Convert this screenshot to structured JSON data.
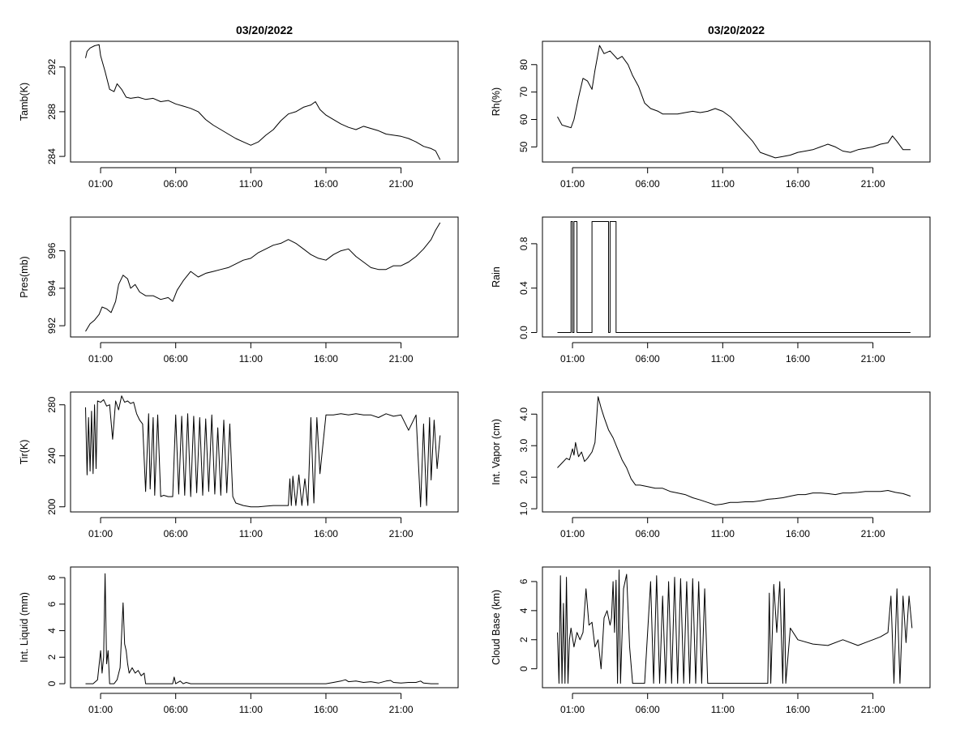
{
  "chart_data": [
    {
      "type": "line",
      "title": "03/20/2022",
      "ylabel": "Tamb(K)",
      "x_ticks": [
        "01:00",
        "06:00",
        "11:00",
        "16:00",
        "21:00"
      ],
      "x_tick_hours": [
        1,
        6,
        11,
        16,
        21
      ],
      "xlim": [
        -1.0,
        24.8
      ],
      "ylim": [
        283.5,
        294.3
      ],
      "y_ticks": [
        284,
        288,
        292
      ],
      "y_tick_labels": [
        "284",
        "288",
        "292"
      ],
      "x": [
        0,
        0.1,
        0.3,
        0.6,
        0.9,
        1.0,
        1.3,
        1.6,
        1.9,
        2.1,
        2.4,
        2.7,
        3.0,
        3.5,
        4.0,
        4.5,
        5.0,
        5.5,
        6.0,
        6.5,
        7.0,
        7.5,
        8.0,
        8.5,
        9.0,
        9.5,
        10.0,
        10.5,
        11.0,
        11.5,
        12.0,
        12.5,
        13.0,
        13.5,
        14.0,
        14.5,
        15.0,
        15.3,
        15.6,
        16.0,
        16.5,
        17.0,
        17.5,
        18.0,
        18.5,
        19.0,
        19.5,
        20.0,
        20.5,
        21.0,
        21.5,
        22.0,
        22.5,
        23.0,
        23.3,
        23.6
      ],
      "y": [
        292.8,
        293.4,
        293.7,
        293.9,
        294.0,
        293.0,
        291.6,
        290.0,
        289.8,
        290.5,
        290.0,
        289.3,
        289.2,
        289.3,
        289.1,
        289.2,
        288.9,
        289.0,
        288.7,
        288.5,
        288.3,
        288.0,
        287.3,
        286.8,
        286.4,
        286.0,
        285.6,
        285.3,
        285.0,
        285.3,
        285.9,
        286.4,
        287.2,
        287.8,
        288.0,
        288.4,
        288.6,
        288.9,
        288.2,
        287.7,
        287.3,
        286.9,
        286.6,
        286.4,
        286.7,
        286.5,
        286.3,
        286.0,
        285.9,
        285.8,
        285.6,
        285.3,
        284.9,
        284.7,
        284.5,
        283.7
      ]
    },
    {
      "type": "line",
      "title": "03/20/2022",
      "ylabel": "Rh(%)",
      "x_ticks": [
        "01:00",
        "06:00",
        "11:00",
        "16:00",
        "21:00"
      ],
      "x_tick_hours": [
        1,
        6,
        11,
        16,
        21
      ],
      "xlim": [
        -1.0,
        24.8
      ],
      "ylim": [
        44.5,
        88.5
      ],
      "y_ticks": [
        50,
        60,
        70,
        80
      ],
      "y_tick_labels": [
        "50",
        "60",
        "70",
        "80"
      ],
      "x": [
        0,
        0.3,
        0.6,
        0.9,
        1.1,
        1.4,
        1.7,
        2.0,
        2.3,
        2.5,
        2.8,
        3.1,
        3.5,
        4.0,
        4.3,
        4.7,
        5.0,
        5.4,
        5.8,
        6.2,
        6.7,
        7.0,
        7.5,
        8.0,
        8.5,
        9.0,
        9.5,
        10.0,
        10.5,
        11.0,
        11.5,
        12.0,
        12.5,
        13.0,
        13.5,
        14.0,
        14.5,
        15.0,
        15.5,
        16.0,
        16.5,
        17.0,
        17.5,
        18.0,
        18.5,
        19.0,
        19.5,
        20.0,
        20.5,
        21.0,
        21.5,
        22.0,
        22.3,
        22.6,
        23.0,
        23.5
      ],
      "y": [
        61,
        58,
        57.5,
        57,
        60,
        68,
        75,
        74,
        71,
        78,
        87,
        84,
        85,
        82,
        83,
        80,
        76,
        72,
        66,
        64,
        63,
        62,
        62,
        62,
        62.5,
        63,
        62.5,
        63,
        64,
        63,
        61,
        58,
        55,
        52,
        48,
        47,
        46,
        46.5,
        47,
        48,
        48.5,
        49,
        50,
        51,
        50,
        48.5,
        48,
        49,
        49.5,
        50,
        51,
        51.5,
        54,
        52,
        49,
        49
      ]
    },
    {
      "type": "line",
      "ylabel": "Pres(mb)",
      "x_ticks": [
        "01:00",
        "06:00",
        "11:00",
        "16:00",
        "21:00"
      ],
      "x_tick_hours": [
        1,
        6,
        11,
        16,
        21
      ],
      "xlim": [
        -1.0,
        24.8
      ],
      "ylim": [
        991.4,
        997.8
      ],
      "y_ticks": [
        992,
        994,
        996
      ],
      "y_tick_labels": [
        "992",
        "994",
        "996"
      ],
      "x": [
        0,
        0.3,
        0.6,
        0.9,
        1.1,
        1.4,
        1.7,
        2.0,
        2.2,
        2.5,
        2.8,
        3.0,
        3.3,
        3.6,
        4.0,
        4.5,
        5.0,
        5.5,
        5.8,
        6.1,
        6.5,
        7.0,
        7.5,
        8.0,
        8.5,
        9.0,
        9.5,
        10.0,
        10.5,
        11.0,
        11.5,
        12.0,
        12.5,
        13.0,
        13.5,
        14.0,
        14.5,
        15.0,
        15.5,
        16.0,
        16.5,
        17.0,
        17.5,
        18.0,
        18.5,
        19.0,
        19.5,
        20.0,
        20.5,
        21.0,
        21.5,
        22.0,
        22.5,
        23.0,
        23.3,
        23.6
      ],
      "y": [
        991.7,
        992.1,
        992.3,
        992.6,
        993.0,
        992.9,
        992.7,
        993.3,
        994.2,
        994.7,
        994.5,
        994.0,
        994.2,
        993.8,
        993.6,
        993.6,
        993.4,
        993.5,
        993.3,
        993.9,
        994.4,
        994.9,
        994.6,
        994.8,
        994.9,
        995.0,
        995.1,
        995.3,
        995.5,
        995.6,
        995.9,
        996.1,
        996.3,
        996.4,
        996.6,
        996.4,
        996.1,
        995.8,
        995.6,
        995.5,
        995.8,
        996.0,
        996.1,
        995.7,
        995.4,
        995.1,
        995.0,
        995.0,
        995.2,
        995.2,
        995.4,
        995.7,
        996.1,
        996.6,
        997.1,
        997.5
      ]
    },
    {
      "type": "line",
      "ylabel": "Rain",
      "x_ticks": [
        "01:00",
        "06:00",
        "11:00",
        "16:00",
        "21:00"
      ],
      "x_tick_hours": [
        1,
        6,
        11,
        16,
        21
      ],
      "xlim": [
        -1.0,
        24.8
      ],
      "ylim": [
        -0.04,
        1.04
      ],
      "y_ticks": [
        0.0,
        0.4,
        0.8
      ],
      "y_tick_labels": [
        "0.0",
        "0.4",
        "0.8"
      ],
      "x": [
        0,
        0.9,
        0.9,
        1.0,
        1.0,
        1.1,
        1.1,
        1.3,
        1.3,
        2.3,
        2.3,
        2.5,
        2.5,
        3.4,
        3.4,
        3.5,
        3.5,
        3.6,
        3.6,
        3.9,
        3.9,
        23.5
      ],
      "y": [
        0,
        0,
        1,
        1,
        0,
        0,
        1,
        1,
        0,
        0,
        1,
        1,
        1,
        1,
        0,
        0,
        1,
        1,
        1,
        1,
        0,
        0
      ]
    },
    {
      "type": "line",
      "ylabel": "Tir(K)",
      "x_ticks": [
        "01:00",
        "06:00",
        "11:00",
        "16:00",
        "21:00"
      ],
      "x_tick_hours": [
        1,
        6,
        11,
        16,
        21
      ],
      "xlim": [
        -1.0,
        24.8
      ],
      "ylim": [
        196,
        290
      ],
      "y_ticks": [
        200,
        240,
        280
      ],
      "y_tick_labels": [
        "200",
        "240",
        "280"
      ],
      "x": [
        0,
        0.1,
        0.2,
        0.3,
        0.4,
        0.5,
        0.6,
        0.7,
        0.8,
        1.0,
        1.2,
        1.4,
        1.6,
        1.8,
        2.0,
        2.2,
        2.4,
        2.6,
        2.8,
        3.0,
        3.2,
        3.4,
        3.6,
        3.8,
        4.0,
        4.2,
        4.3,
        4.5,
        4.6,
        4.8,
        5.0,
        5.2,
        5.5,
        5.8,
        6.0,
        6.2,
        6.4,
        6.6,
        6.8,
        7.0,
        7.2,
        7.4,
        7.6,
        7.8,
        8.0,
        8.2,
        8.4,
        8.6,
        8.8,
        9.0,
        9.2,
        9.4,
        9.6,
        9.8,
        10.0,
        10.5,
        11.0,
        11.5,
        12.0,
        12.5,
        13.0,
        13.5,
        13.6,
        13.7,
        13.8,
        14.0,
        14.2,
        14.4,
        14.6,
        14.8,
        15.0,
        15.2,
        15.4,
        15.6,
        16.0,
        16.5,
        17.0,
        17.5,
        18.0,
        18.5,
        19.0,
        19.5,
        20.0,
        20.5,
        21.0,
        21.5,
        22.0,
        22.3,
        22.5,
        22.7,
        22.9,
        23.0,
        23.2,
        23.4,
        23.6
      ],
      "y": [
        278,
        225,
        270,
        228,
        275,
        226,
        280,
        230,
        283,
        282,
        284,
        279,
        280,
        253,
        283,
        276,
        287,
        282,
        283,
        281,
        282,
        273,
        268,
        265,
        212,
        273,
        214,
        270,
        209,
        272,
        208,
        209,
        208,
        208,
        272,
        210,
        271,
        209,
        273,
        208,
        271,
        211,
        270,
        209,
        269,
        212,
        272,
        210,
        262,
        209,
        268,
        211,
        265,
        208,
        203,
        201,
        200,
        200,
        200.5,
        201,
        201,
        201,
        222,
        201,
        224,
        201,
        225,
        201,
        222,
        201,
        270,
        203,
        270,
        226,
        272,
        272,
        273,
        272,
        273,
        272,
        272,
        270,
        273,
        271,
        272,
        260,
        272,
        200,
        265,
        201,
        270,
        221,
        268,
        230,
        256
      ]
    },
    {
      "type": "line",
      "ylabel": "Int. Vapor (cm)",
      "x_ticks": [
        "01:00",
        "06:00",
        "11:00",
        "16:00",
        "21:00"
      ],
      "x_tick_hours": [
        1,
        6,
        11,
        16,
        21
      ],
      "xlim": [
        -1.0,
        24.8
      ],
      "ylim": [
        0.9,
        4.7
      ],
      "y_ticks": [
        1.0,
        2.0,
        3.0,
        4.0
      ],
      "y_tick_labels": [
        "1.0",
        "2.0",
        "3.0",
        "4.0"
      ],
      "x": [
        0,
        0.3,
        0.6,
        0.8,
        1.0,
        1.1,
        1.2,
        1.4,
        1.6,
        1.8,
        2.0,
        2.3,
        2.5,
        2.7,
        2.9,
        3.1,
        3.4,
        3.7,
        4.0,
        4.3,
        4.6,
        4.9,
        5.2,
        5.5,
        6.0,
        6.5,
        7.0,
        7.5,
        8.0,
        8.5,
        9.0,
        9.5,
        10.0,
        10.5,
        11.0,
        11.5,
        12.0,
        12.5,
        13.0,
        13.5,
        14.0,
        14.5,
        15.0,
        15.5,
        16.0,
        16.5,
        17.0,
        17.5,
        18.0,
        18.5,
        19.0,
        19.5,
        20.0,
        20.5,
        21.0,
        21.5,
        22.0,
        22.5,
        23.0,
        23.5
      ],
      "y": [
        2.3,
        2.45,
        2.6,
        2.55,
        2.9,
        2.7,
        3.1,
        2.65,
        2.8,
        2.5,
        2.6,
        2.8,
        3.1,
        4.55,
        4.2,
        3.9,
        3.5,
        3.25,
        2.9,
        2.55,
        2.3,
        1.95,
        1.75,
        1.75,
        1.7,
        1.65,
        1.65,
        1.55,
        1.5,
        1.45,
        1.35,
        1.28,
        1.2,
        1.12,
        1.15,
        1.2,
        1.2,
        1.22,
        1.22,
        1.25,
        1.3,
        1.32,
        1.35,
        1.4,
        1.45,
        1.45,
        1.5,
        1.5,
        1.48,
        1.45,
        1.5,
        1.5,
        1.52,
        1.55,
        1.55,
        1.55,
        1.58,
        1.52,
        1.48,
        1.4
      ]
    },
    {
      "type": "line",
      "ylabel": "Int. Liquid (mm)",
      "x_ticks": [
        "01:00",
        "06:00",
        "11:00",
        "16:00",
        "21:00"
      ],
      "x_tick_hours": [
        1,
        6,
        11,
        16,
        21
      ],
      "xlim": [
        -1.0,
        24.8
      ],
      "ylim": [
        -0.3,
        8.8
      ],
      "y_ticks": [
        0,
        2,
        4,
        6,
        8
      ],
      "y_tick_labels": [
        "0",
        "2",
        "4",
        "6",
        "8"
      ],
      "x": [
        0,
        0.5,
        0.8,
        1.0,
        1.1,
        1.2,
        1.3,
        1.4,
        1.5,
        1.6,
        1.7,
        1.9,
        2.1,
        2.3,
        2.5,
        2.6,
        2.7,
        2.8,
        2.9,
        3.1,
        3.3,
        3.5,
        3.7,
        3.9,
        4.0,
        5.0,
        5.8,
        5.9,
        6.0,
        6.3,
        6.5,
        6.7,
        7.0,
        10.0,
        14.0,
        16.0,
        16.5,
        17.0,
        17.3,
        17.5,
        18.0,
        18.5,
        19.0,
        19.5,
        20.0,
        20.3,
        20.5,
        21.0,
        21.5,
        22.0,
        22.3,
        22.5,
        23.0,
        23.5
      ],
      "y": [
        0,
        0,
        0.3,
        2.5,
        0.8,
        2.0,
        8.3,
        1.5,
        2.5,
        0,
        0,
        0,
        0.3,
        1.2,
        6.1,
        3.0,
        2.5,
        1.5,
        0.8,
        1.2,
        0.8,
        1.0,
        0.6,
        0.8,
        0,
        0,
        0,
        0.5,
        0,
        0.2,
        0,
        0.1,
        0,
        0,
        0,
        0,
        0.1,
        0.2,
        0.3,
        0.15,
        0.2,
        0.1,
        0.15,
        0.05,
        0.2,
        0.25,
        0.1,
        0.05,
        0.1,
        0.1,
        0.2,
        0.05,
        0,
        0
      ]
    },
    {
      "type": "line",
      "ylabel": "Cloud Base (km)",
      "x_ticks": [
        "01:00",
        "06:00",
        "11:00",
        "16:00",
        "21:00"
      ],
      "x_tick_hours": [
        1,
        6,
        11,
        16,
        21
      ],
      "xlim": [
        -1.0,
        24.8
      ],
      "ylim": [
        -1.3,
        7.0
      ],
      "y_ticks": [
        0,
        2,
        4,
        6
      ],
      "y_tick_labels": [
        "0",
        "2",
        "4",
        "6"
      ],
      "x": [
        0,
        0.1,
        0.2,
        0.3,
        0.4,
        0.5,
        0.6,
        0.7,
        0.8,
        0.9,
        1.1,
        1.3,
        1.5,
        1.7,
        1.9,
        2.1,
        2.3,
        2.5,
        2.7,
        2.9,
        3.1,
        3.3,
        3.5,
        3.6,
        3.7,
        3.8,
        3.9,
        4.0,
        4.1,
        4.2,
        4.4,
        4.6,
        4.8,
        5.0,
        5.2,
        5.5,
        5.8,
        6.0,
        6.2,
        6.4,
        6.6,
        6.8,
        7.0,
        7.2,
        7.4,
        7.6,
        7.8,
        8.0,
        8.2,
        8.4,
        8.6,
        8.8,
        9.0,
        9.2,
        9.4,
        9.6,
        9.8,
        10.0,
        10.5,
        11.0,
        12.0,
        13.0,
        14.0,
        14.1,
        14.2,
        14.4,
        14.6,
        14.8,
        15.0,
        15.1,
        15.2,
        15.5,
        16.0,
        17.0,
        18.0,
        19.0,
        20.0,
        20.5,
        21.0,
        21.5,
        22.0,
        22.2,
        22.4,
        22.6,
        22.8,
        23.0,
        23.2,
        23.4,
        23.6
      ],
      "y": [
        2.5,
        -1,
        6.4,
        -1,
        4.5,
        -1,
        6.3,
        -1,
        2.0,
        2.8,
        1.5,
        2.5,
        2.0,
        2.5,
        5.5,
        3.0,
        3.2,
        1.5,
        2.0,
        0,
        3.5,
        4.0,
        3.0,
        3.5,
        6.0,
        2.5,
        6.1,
        -1,
        6.8,
        -1,
        5.5,
        6.5,
        1.5,
        -1,
        -1,
        -1,
        -1,
        2.5,
        6.0,
        -1,
        6.4,
        -1,
        5.0,
        -1,
        6.0,
        -1,
        6.3,
        -1,
        6.2,
        -1,
        6.0,
        -1,
        6.2,
        -1,
        6.0,
        -1,
        5.5,
        -1,
        -1,
        -1,
        -1,
        -1,
        -1,
        5.2,
        -1,
        5.8,
        2.5,
        6.0,
        -1,
        5.5,
        -1,
        2.8,
        2.0,
        1.7,
        1.6,
        2.0,
        1.6,
        1.8,
        2.0,
        2.2,
        2.5,
        5.0,
        -1,
        5.5,
        -1,
        5.0,
        1.8,
        5.0,
        2.8
      ]
    }
  ]
}
